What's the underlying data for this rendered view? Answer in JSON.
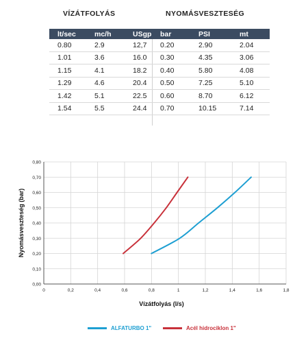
{
  "tables": {
    "flow": {
      "title": "VÍZÁTFOLYÁS",
      "headers": [
        "lt/sec",
        "mc/h",
        "USgpm"
      ],
      "rows": [
        [
          "0.80",
          "2.9",
          "12,7"
        ],
        [
          "1.01",
          "3.6",
          "16.0"
        ],
        [
          "1.15",
          "4.1",
          "18.2"
        ],
        [
          "1.29",
          "4.6",
          "20.4"
        ],
        [
          "1.42",
          "5.1",
          "22.5"
        ],
        [
          "1.54",
          "5.5",
          "24.4"
        ]
      ]
    },
    "loss": {
      "title": "NYOMÁSVESZTESÉG",
      "headers": [
        "bar",
        "PSI",
        "mt"
      ],
      "rows": [
        [
          "0.20",
          "2.90",
          "2.04"
        ],
        [
          "0.30",
          "4.35",
          "3.06"
        ],
        [
          "0.40",
          "5.80",
          "4.08"
        ],
        [
          "0.50",
          "7.25",
          "5.10"
        ],
        [
          "0.60",
          "8.70",
          "6.12"
        ],
        [
          "0.70",
          "10.15",
          "7.14"
        ]
      ]
    }
  },
  "chart_data": {
    "type": "line",
    "xlabel": "Vízátfolyás (l/s)",
    "ylabel": "Nyomásveszteség (bar)",
    "xlim": [
      0,
      1.8
    ],
    "ylim": [
      0,
      0.8
    ],
    "xticks": [
      "0",
      "0,2",
      "0,4",
      "0,6",
      "0,8",
      "1",
      "1,2",
      "1,4",
      "1,6",
      "1,8"
    ],
    "yticks": [
      "0,00",
      "0,10",
      "0,20",
      "0,30",
      "0,40",
      "0,50",
      "0,60",
      "0,70",
      "0,80"
    ],
    "grid": true,
    "legend_position": "bottom",
    "series": [
      {
        "name": "ALFATURBO 1\"",
        "color": "#1e9fd2",
        "x": [
          0.8,
          1.01,
          1.15,
          1.29,
          1.42,
          1.54
        ],
        "y": [
          0.2,
          0.3,
          0.4,
          0.5,
          0.6,
          0.7
        ]
      },
      {
        "name": "Acél hidrociklon 1\"",
        "color": "#c8313a",
        "x": [
          0.59,
          0.72,
          0.82,
          0.91,
          0.99,
          1.07
        ],
        "y": [
          0.2,
          0.3,
          0.4,
          0.5,
          0.6,
          0.7
        ]
      }
    ]
  }
}
